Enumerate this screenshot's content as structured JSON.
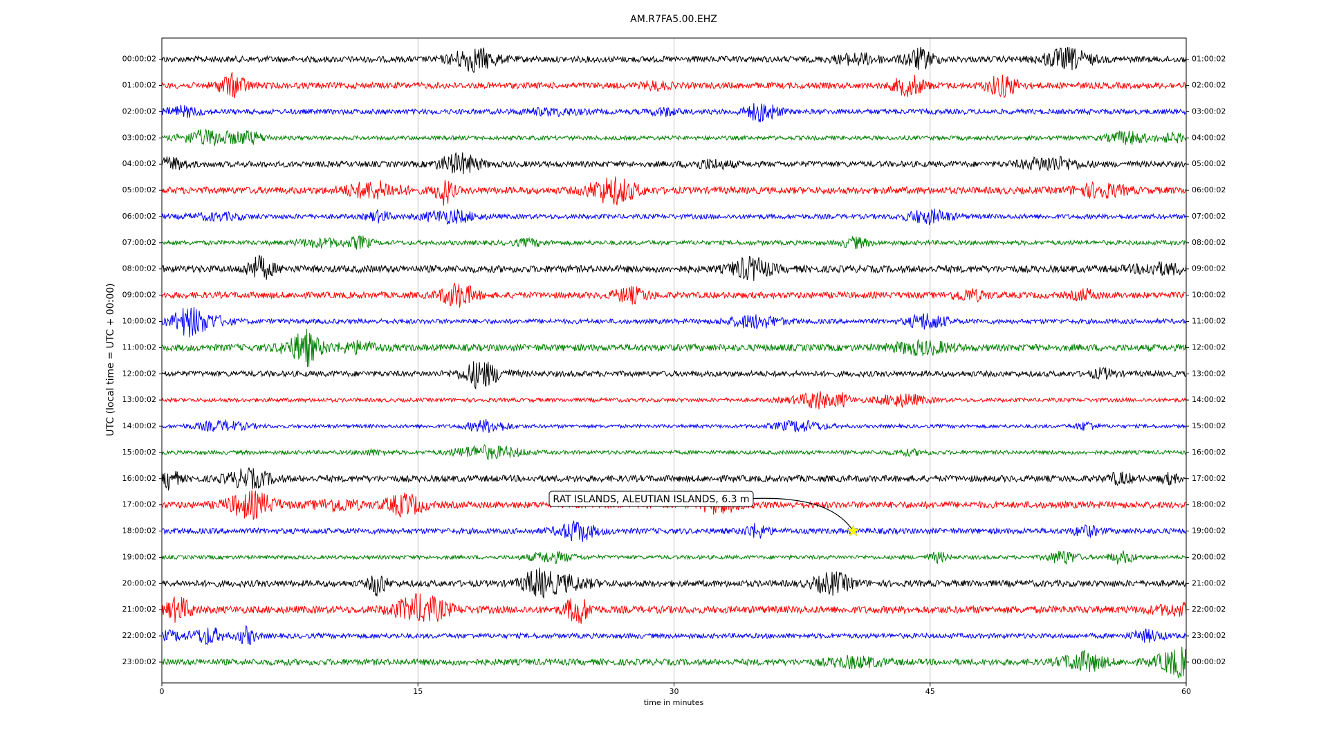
{
  "chart_data": {
    "type": "dayplot",
    "title": "AM.R7FA5.00.EHZ",
    "xlabel": "time in minutes",
    "ylabel": "UTC (local time = UTC + 00:00)",
    "xlim": [
      0,
      60
    ],
    "xticks": [
      0,
      15,
      30,
      45,
      60
    ],
    "grid": true,
    "trace_colors": [
      "#000000",
      "#ff0000",
      "#0000ff",
      "#008000"
    ],
    "left_labels": [
      "00:00:02",
      "01:00:02",
      "02:00:02",
      "03:00:02",
      "04:00:02",
      "05:00:02",
      "06:00:02",
      "07:00:02",
      "08:00:02",
      "09:00:02",
      "10:00:02",
      "11:00:02",
      "12:00:02",
      "13:00:02",
      "14:00:02",
      "15:00:02",
      "16:00:02",
      "17:00:02",
      "18:00:02",
      "19:00:02",
      "20:00:02",
      "21:00:02",
      "22:00:02",
      "23:00:02"
    ],
    "right_labels": [
      "01:00:02",
      "02:00:02",
      "03:00:02",
      "04:00:02",
      "05:00:02",
      "06:00:02",
      "07:00:02",
      "08:00:02",
      "09:00:02",
      "10:00:02",
      "11:00:02",
      "12:00:02",
      "13:00:02",
      "14:00:02",
      "15:00:02",
      "16:00:02",
      "17:00:02",
      "18:00:02",
      "19:00:02",
      "20:00:02",
      "21:00:02",
      "22:00:02",
      "23:00:02",
      "00:00:02"
    ],
    "event": {
      "label": "RAT ISLANDS, ALEUTIAN ISLANDS, 6.3 m",
      "x": 40.5,
      "row": 18,
      "color": "#ffff00"
    }
  }
}
